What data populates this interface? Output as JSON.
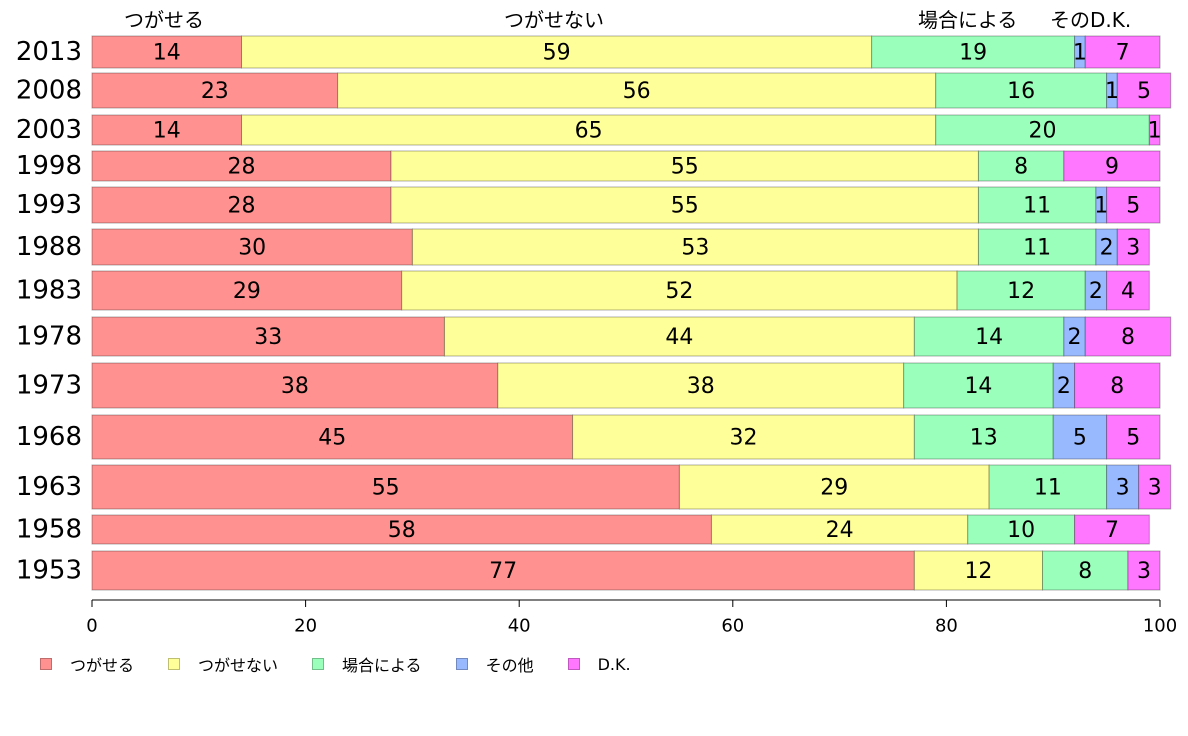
{
  "headers": [
    "つがせる",
    "つがせない",
    "場合による",
    "そのD.K."
  ],
  "legend": [
    {
      "label": "つがせる",
      "color": "#ff9191"
    },
    {
      "label": "つがせない",
      "color": "#ffff99"
    },
    {
      "label": "場合による",
      "color": "#99ffbb"
    },
    {
      "label": "その他",
      "color": "#99b9ff"
    },
    {
      "label": "D.K.",
      "color": "#ff77ff"
    }
  ],
  "chart_data": {
    "type": "bar",
    "orientation": "horizontal",
    "stacked": true,
    "categories": [
      "2013",
      "2008",
      "2003",
      "1998",
      "1993",
      "1988",
      "1983",
      "1978",
      "1973",
      "1968",
      "1963",
      "1958",
      "1953"
    ],
    "series": [
      {
        "name": "つがせる",
        "color": "#ff9191",
        "values": [
          14,
          23,
          14,
          28,
          28,
          30,
          29,
          33,
          38,
          45,
          55,
          58,
          77
        ]
      },
      {
        "name": "つがせない",
        "color": "#ffff99",
        "values": [
          59,
          56,
          65,
          55,
          55,
          53,
          52,
          44,
          38,
          32,
          29,
          24,
          12
        ]
      },
      {
        "name": "場合による",
        "color": "#99ffbb",
        "values": [
          19,
          16,
          20,
          8,
          11,
          11,
          12,
          14,
          14,
          13,
          11,
          10,
          8
        ]
      },
      {
        "name": "その他",
        "color": "#99b9ff",
        "values": [
          1,
          1,
          0,
          0,
          1,
          2,
          2,
          2,
          2,
          5,
          3,
          0,
          0
        ]
      },
      {
        "name": "D.K.",
        "color": "#ff77ff",
        "values": [
          7,
          5,
          1,
          9,
          5,
          3,
          4,
          8,
          8,
          5,
          3,
          7,
          3
        ]
      }
    ],
    "xlim": [
      0,
      100
    ],
    "xticks": [
      0,
      20,
      40,
      60,
      80,
      100
    ],
    "grid": false,
    "legend_position": "bottom-left"
  }
}
